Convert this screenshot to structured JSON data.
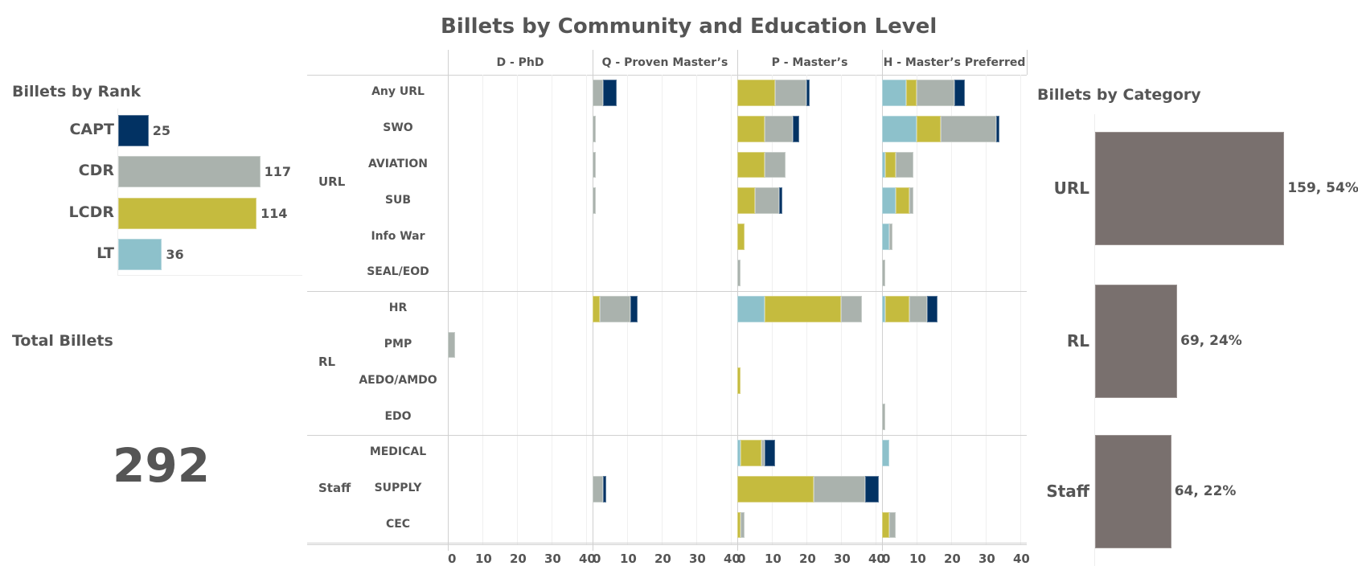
{
  "title": "Billets by Community and Education Level",
  "colors": {
    "CAPT": "#023263",
    "CDR": "#aab2ad",
    "LCDR": "#c5bb3e",
    "LT": "#8dc1cb",
    "category_bar": "#79706e",
    "text": "#555555"
  },
  "rank_panel": {
    "title": "Billets by Rank",
    "items": [
      {
        "label": "CAPT",
        "value": 25,
        "value_label": "25"
      },
      {
        "label": "CDR",
        "value": 117,
        "value_label": "117"
      },
      {
        "label": "LCDR",
        "value": 114,
        "value_label": "114"
      },
      {
        "label": "LT",
        "value": 36,
        "value_label": "36"
      }
    ]
  },
  "total_panel": {
    "title": "Total Billets",
    "value": "292"
  },
  "category_panel": {
    "title": "Billets by Category",
    "items": [
      {
        "label": "URL",
        "value": 159,
        "value_label": "159, 54%"
      },
      {
        "label": "RL",
        "value": 69,
        "value_label": "69, 24%"
      },
      {
        "label": "Staff",
        "value": 64,
        "value_label": "64, 22%"
      }
    ]
  },
  "chart_data": {
    "type": "bar",
    "orientation": "horizontal-stacked",
    "title": "Billets by Community and Education Level",
    "stack_order": [
      "LT",
      "LCDR",
      "CDR",
      "CAPT"
    ],
    "columns": [
      "D - PhD",
      "Q - Proven Master’s",
      "P - Master’s",
      "H - Master’s Preferred"
    ],
    "x_ticks": [
      "0",
      "10",
      "20",
      "30",
      "40"
    ],
    "xlim": [
      0,
      40
    ],
    "groups": [
      {
        "name": "URL",
        "rows": [
          "Any URL",
          "SWO",
          "AVIATION",
          "SUB",
          "Info War",
          "SEAL/EOD"
        ]
      },
      {
        "name": "RL",
        "rows": [
          "HR",
          "PMP",
          "AEDO/AMDO",
          "EDO"
        ]
      },
      {
        "name": "Staff",
        "rows": [
          "MEDICAL",
          "SUPPLY",
          "CEC"
        ]
      }
    ],
    "data": {
      "D - PhD": {
        "PMP": {
          "LT": 0,
          "LCDR": 0,
          "CDR": 2,
          "CAPT": 0
        }
      },
      "Q - Proven Master’s": {
        "Any URL": {
          "LT": 0,
          "LCDR": 0,
          "CDR": 3,
          "CAPT": 4
        },
        "SWO": {
          "LT": 0,
          "LCDR": 0,
          "CDR": 1,
          "CAPT": 0
        },
        "AVIATION": {
          "LT": 0,
          "LCDR": 0,
          "CDR": 1,
          "CAPT": 0
        },
        "SUB": {
          "LT": 0,
          "LCDR": 0,
          "CDR": 1,
          "CAPT": 0
        },
        "HR": {
          "LT": 0,
          "LCDR": 2,
          "CDR": 9,
          "CAPT": 2
        },
        "SUPPLY": {
          "LT": 0,
          "LCDR": 0,
          "CDR": 3,
          "CAPT": 1
        }
      },
      "P - Master’s": {
        "Any URL": {
          "LT": 0,
          "LCDR": 11,
          "CDR": 9,
          "CAPT": 1
        },
        "SWO": {
          "LT": 0,
          "LCDR": 8,
          "CDR": 8,
          "CAPT": 2
        },
        "AVIATION": {
          "LT": 0,
          "LCDR": 8,
          "CDR": 6,
          "CAPT": 0
        },
        "SUB": {
          "LT": 0,
          "LCDR": 5,
          "CDR": 7,
          "CAPT": 1
        },
        "Info War": {
          "LT": 0,
          "LCDR": 2,
          "CDR": 0,
          "CAPT": 0
        },
        "SEAL/EOD": {
          "LT": 0,
          "LCDR": 0,
          "CDR": 1,
          "CAPT": 0
        },
        "HR": {
          "LT": 8,
          "LCDR": 22,
          "CDR": 6,
          "CAPT": 0
        },
        "AEDO/AMDO": {
          "LT": 0,
          "LCDR": 1,
          "CDR": 0,
          "CAPT": 0
        },
        "MEDICAL": {
          "LT": 1,
          "LCDR": 6,
          "CDR": 1,
          "CAPT": 3
        },
        "SUPPLY": {
          "LT": 0,
          "LCDR": 22,
          "CDR": 15,
          "CAPT": 4
        },
        "CEC": {
          "LT": 0,
          "LCDR": 1,
          "CDR": 1,
          "CAPT": 0
        }
      },
      "H - Master’s Preferred": {
        "Any URL": {
          "LT": 7,
          "LCDR": 3,
          "CDR": 11,
          "CAPT": 3
        },
        "SWO": {
          "LT": 10,
          "LCDR": 7,
          "CDR": 16,
          "CAPT": 1
        },
        "AVIATION": {
          "LT": 1,
          "LCDR": 3,
          "CDR": 5,
          "CAPT": 0
        },
        "SUB": {
          "LT": 4,
          "LCDR": 4,
          "CDR": 1,
          "CAPT": 0
        },
        "Info War": {
          "LT": 2,
          "LCDR": 0,
          "CDR": 1,
          "CAPT": 0
        },
        "SEAL/EOD": {
          "LT": 0,
          "LCDR": 0,
          "CDR": 1,
          "CAPT": 0
        },
        "HR": {
          "LT": 1,
          "LCDR": 7,
          "CDR": 5,
          "CAPT": 3
        },
        "EDO": {
          "LT": 0,
          "LCDR": 0,
          "CDR": 1,
          "CAPT": 0
        },
        "MEDICAL": {
          "LT": 2,
          "LCDR": 0,
          "CDR": 0,
          "CAPT": 0
        },
        "CEC": {
          "LT": 0,
          "LCDR": 2,
          "CDR": 2,
          "CAPT": 0
        }
      }
    }
  }
}
